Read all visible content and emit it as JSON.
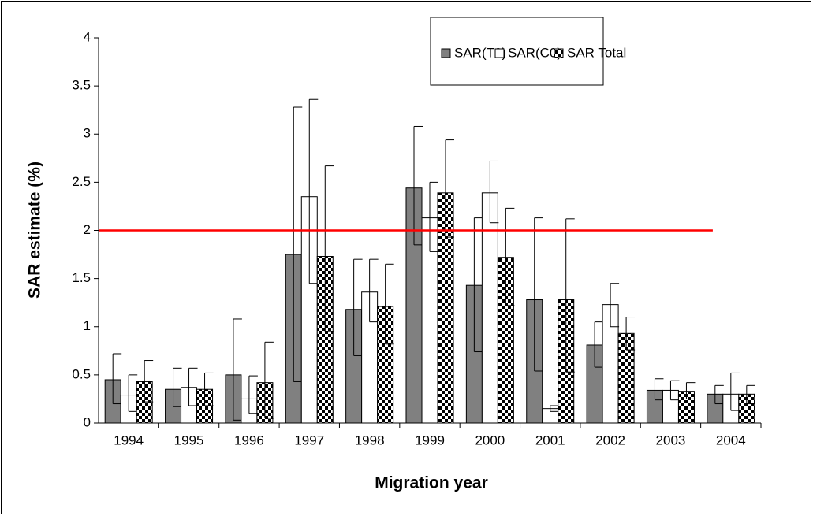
{
  "chart_data": {
    "type": "bar",
    "categories": [
      "1994",
      "1995",
      "1996",
      "1997",
      "1998",
      "1999",
      "2000",
      "2001",
      "2002",
      "2003",
      "2004"
    ],
    "x_label": "Migration year",
    "y_label": "SAR estimate (%)",
    "ylim": [
      0,
      4
    ],
    "yticks": [
      0,
      0.5,
      1,
      1.5,
      2,
      2.5,
      3,
      3.5,
      4
    ],
    "legend": "top-right",
    "reference_line": {
      "value": 2,
      "color": "#ff0000"
    },
    "series": [
      {
        "name": "SAR(T0)",
        "color": "#808080",
        "pattern": "solid",
        "values": [
          0.45,
          0.35,
          0.5,
          1.75,
          1.18,
          2.44,
          1.43,
          1.28,
          0.81,
          0.34,
          0.3
        ],
        "err_low": [
          0.2,
          0.17,
          0.03,
          0.43,
          0.7,
          1.85,
          0.74,
          0.54,
          0.58,
          0.24,
          0.2
        ],
        "err_high": [
          0.72,
          0.57,
          1.08,
          3.28,
          1.7,
          3.08,
          2.13,
          2.13,
          1.05,
          0.46,
          0.39
        ]
      },
      {
        "name": "SAR(C0)",
        "color": "#ffffff",
        "pattern": "solid",
        "values": [
          0.29,
          0.37,
          0.25,
          2.35,
          1.36,
          2.13,
          2.39,
          0.15,
          1.23,
          0.34,
          0.3
        ],
        "err_low": [
          0.12,
          0.18,
          0.1,
          1.45,
          1.05,
          1.78,
          2.08,
          0.12,
          1.0,
          0.24,
          0.13
        ],
        "err_high": [
          0.5,
          0.57,
          0.49,
          3.36,
          1.7,
          2.5,
          2.72,
          0.18,
          1.45,
          0.44,
          0.52
        ]
      },
      {
        "name": "SAR Total",
        "color": "#000000",
        "pattern": "checker",
        "values": [
          0.43,
          0.35,
          0.42,
          1.73,
          1.21,
          2.39,
          1.72,
          1.28,
          0.93,
          0.33,
          0.3
        ],
        "err_low": [
          0.22,
          0.18,
          0.05,
          0.95,
          0.82,
          1.93,
          1.22,
          0.53,
          0.76,
          0.25,
          0.2
        ],
        "err_high": [
          0.65,
          0.52,
          0.84,
          2.67,
          1.65,
          2.94,
          2.23,
          2.12,
          1.1,
          0.42,
          0.39
        ]
      }
    ]
  }
}
